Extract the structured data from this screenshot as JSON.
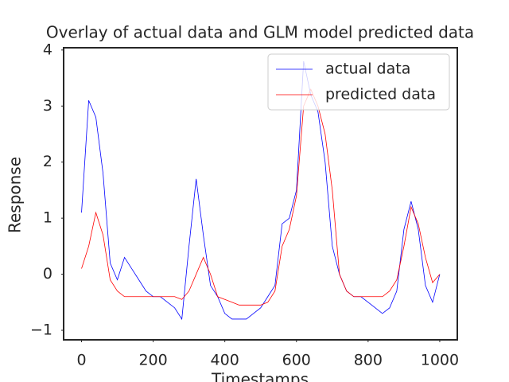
{
  "chart_data": {
    "type": "line",
    "title": "Overlay of actual data and GLM model predicted data",
    "x_label": "Timestamps",
    "y_label": "Response",
    "x": [
      0,
      20,
      40,
      60,
      80,
      100,
      120,
      140,
      160,
      180,
      200,
      220,
      240,
      260,
      280,
      300,
      320,
      340,
      360,
      380,
      400,
      420,
      440,
      460,
      480,
      500,
      520,
      540,
      560,
      580,
      600,
      620,
      640,
      660,
      680,
      700,
      720,
      740,
      760,
      780,
      800,
      820,
      840,
      860,
      880,
      900,
      920,
      940,
      960,
      980,
      1000
    ],
    "series": [
      {
        "name": "actual data",
        "color": "#0000ff",
        "values": [
          1.1,
          3.1,
          2.8,
          1.8,
          0.2,
          -0.1,
          0.3,
          0.1,
          -0.1,
          -0.3,
          -0.4,
          -0.4,
          -0.5,
          -0.6,
          -0.8,
          0.5,
          1.7,
          0.7,
          -0.2,
          -0.4,
          -0.7,
          -0.8,
          -0.8,
          -0.8,
          -0.7,
          -0.6,
          -0.4,
          -0.2,
          0.9,
          1.0,
          1.5,
          3.8,
          3.2,
          2.9,
          2.0,
          0.5,
          0.0,
          -0.3,
          -0.4,
          -0.4,
          -0.5,
          -0.6,
          -0.7,
          -0.6,
          -0.3,
          0.8,
          1.3,
          0.8,
          -0.2,
          -0.5,
          0.0
        ]
      },
      {
        "name": "predicted data",
        "color": "#ff0000",
        "values": [
          0.1,
          0.5,
          1.1,
          0.7,
          -0.1,
          -0.3,
          -0.4,
          -0.4,
          -0.4,
          -0.4,
          -0.4,
          -0.4,
          -0.4,
          -0.4,
          -0.45,
          -0.3,
          0.0,
          0.3,
          0.0,
          -0.4,
          -0.45,
          -0.5,
          -0.55,
          -0.55,
          -0.55,
          -0.55,
          -0.5,
          -0.3,
          0.5,
          0.8,
          1.4,
          3.0,
          3.3,
          3.0,
          2.5,
          1.5,
          0.0,
          -0.3,
          -0.4,
          -0.4,
          -0.4,
          -0.4,
          -0.4,
          -0.3,
          -0.1,
          0.5,
          1.2,
          0.9,
          0.3,
          -0.15,
          0.0
        ]
      }
    ],
    "xlim": [
      -50,
      1049
    ],
    "ylim": [
      -1.17,
      4.04
    ],
    "xticks": [
      0,
      200,
      400,
      600,
      800,
      1000
    ],
    "yticks": [
      {
        "value": -1,
        "label": "−1"
      },
      0,
      1,
      2,
      3,
      4
    ],
    "grid": false,
    "legend": "upper right"
  }
}
